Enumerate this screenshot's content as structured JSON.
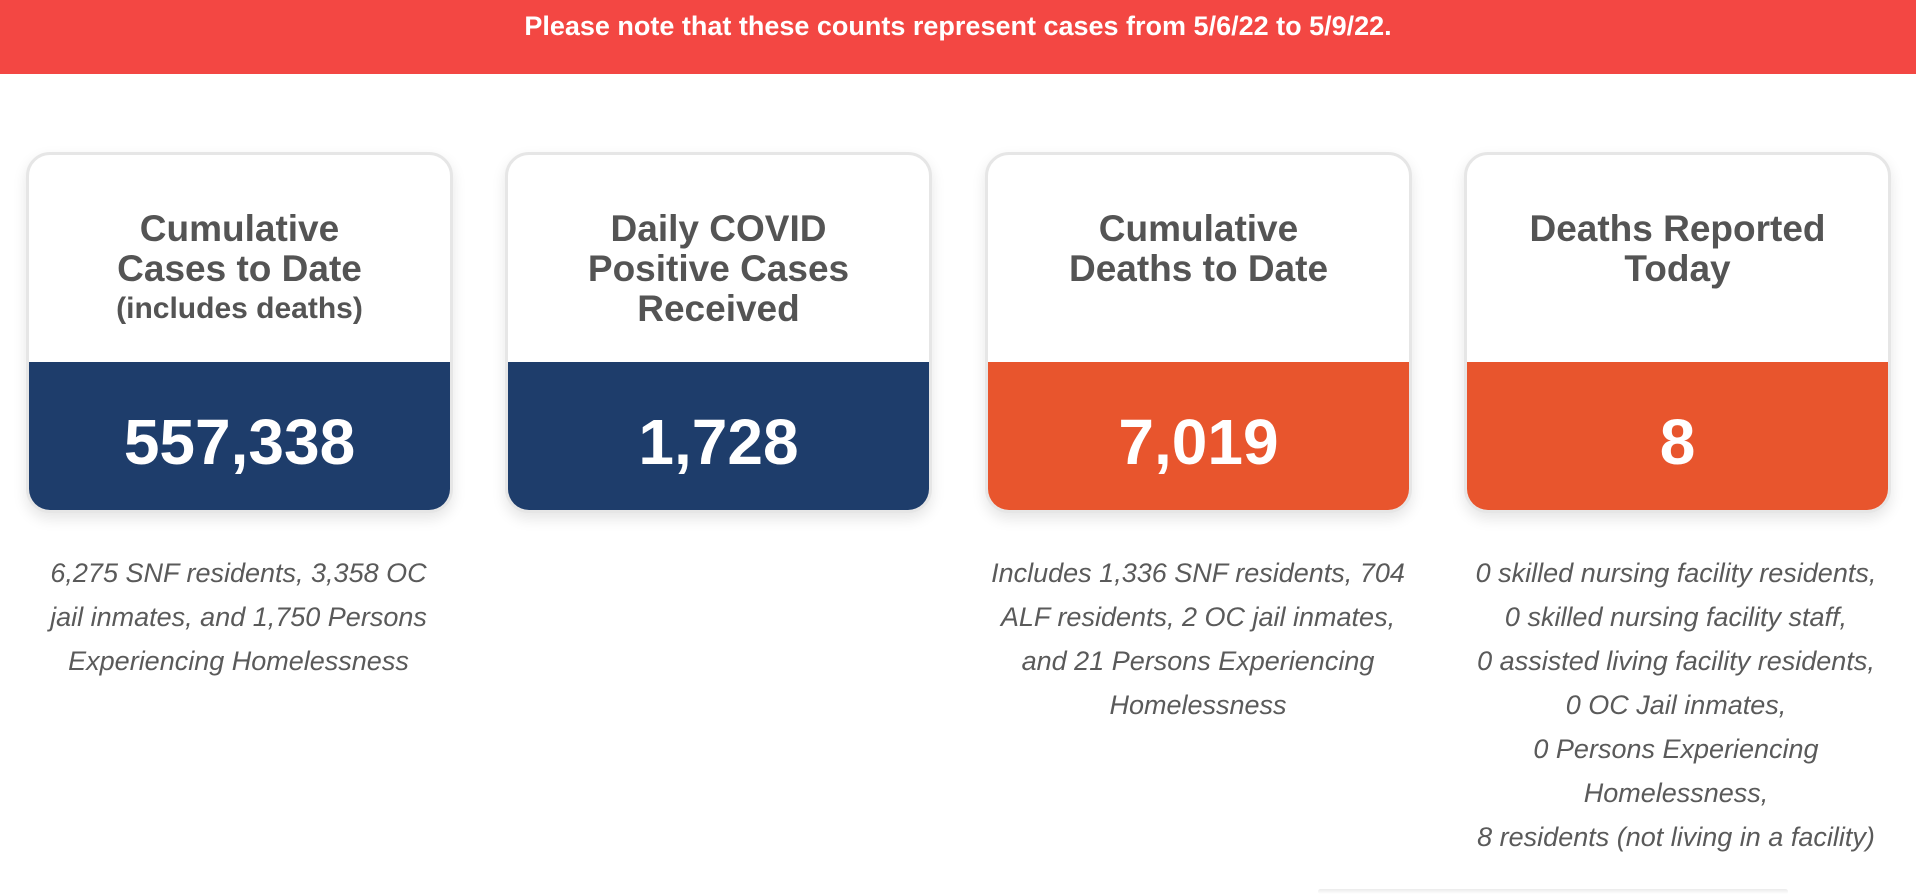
{
  "banner": {
    "text": "Please note that these counts represent cases from 5/6/22 to 5/9/22."
  },
  "cards": [
    {
      "title_lines": [
        "Cumulative",
        "Cases to Date"
      ],
      "subtitle": "(includes deaths)",
      "value": "557,338",
      "value_color": "#1e3d6b",
      "note_lines": [
        "6,275 SNF residents, 3,358 OC",
        "jail inmates, and 1,750 Persons",
        "Experiencing Homelessness"
      ]
    },
    {
      "title_lines": [
        "Daily COVID",
        "Positive Cases",
        "Received"
      ],
      "value": "1,728",
      "value_color": "#1e3d6b"
    },
    {
      "title_lines": [
        "Cumulative",
        "Deaths to Date"
      ],
      "value": "7,019",
      "value_color": "#e8552d",
      "note_lines": [
        "Includes 1,336 SNF residents, 704",
        "ALF residents, 2 OC jail inmates,",
        "and 21 Persons Experiencing",
        "Homelessness"
      ]
    },
    {
      "title_lines": [
        "Deaths Reported",
        "Today"
      ],
      "value": "8",
      "value_color": "#e8552d",
      "note_lines": [
        "0 skilled nursing facility residents,",
        "0 skilled nursing facility staff,",
        "0 assisted living facility residents,",
        "0 OC Jail inmates,",
        "0 Persons Experiencing",
        "Homelessness,",
        "8 residents (not living in a facility)"
      ]
    }
  ],
  "colors": {
    "banner": "#f34743",
    "navy": "#1e3d6b",
    "orange": "#e8552d",
    "title_text": "#545454",
    "note_text": "#5a5a5a"
  }
}
